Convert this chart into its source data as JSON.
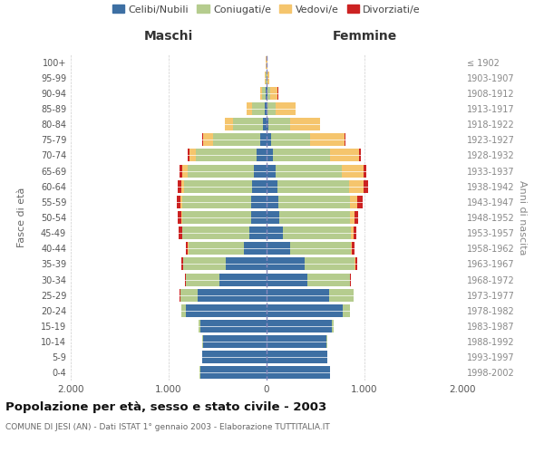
{
  "age_groups": [
    "0-4",
    "5-9",
    "10-14",
    "15-19",
    "20-24",
    "25-29",
    "30-34",
    "35-39",
    "40-44",
    "45-49",
    "50-54",
    "55-59",
    "60-64",
    "65-69",
    "70-74",
    "75-79",
    "80-84",
    "85-89",
    "90-94",
    "95-99",
    "100+"
  ],
  "birth_years": [
    "1998-2002",
    "1993-1997",
    "1988-1992",
    "1983-1987",
    "1978-1982",
    "1973-1977",
    "1968-1972",
    "1963-1967",
    "1958-1962",
    "1953-1957",
    "1948-1952",
    "1943-1947",
    "1938-1942",
    "1933-1937",
    "1928-1932",
    "1923-1927",
    "1918-1922",
    "1913-1917",
    "1908-1912",
    "1903-1907",
    "≤ 1902"
  ],
  "male": {
    "celibi": [
      680,
      660,
      650,
      680,
      820,
      700,
      480,
      420,
      230,
      180,
      160,
      155,
      145,
      130,
      100,
      65,
      35,
      20,
      8,
      4,
      2
    ],
    "coniugati": [
      2,
      2,
      4,
      15,
      50,
      180,
      340,
      430,
      570,
      680,
      700,
      710,
      700,
      680,
      620,
      480,
      310,
      130,
      40,
      8,
      2
    ],
    "vedovi": [
      0,
      0,
      0,
      0,
      1,
      1,
      2,
      2,
      3,
      5,
      8,
      15,
      30,
      50,
      70,
      100,
      80,
      50,
      20,
      5,
      1
    ],
    "divorziati": [
      0,
      0,
      0,
      1,
      2,
      4,
      8,
      15,
      20,
      30,
      35,
      40,
      35,
      25,
      12,
      8,
      5,
      2,
      1,
      0,
      0
    ]
  },
  "female": {
    "nubili": [
      650,
      620,
      610,
      665,
      775,
      640,
      420,
      390,
      240,
      165,
      130,
      120,
      110,
      90,
      65,
      45,
      22,
      12,
      5,
      3,
      1
    ],
    "coniugate": [
      2,
      3,
      8,
      20,
      75,
      245,
      430,
      510,
      620,
      700,
      720,
      730,
      730,
      680,
      580,
      400,
      220,
      80,
      30,
      5,
      2
    ],
    "vedove": [
      0,
      0,
      0,
      0,
      1,
      2,
      3,
      5,
      10,
      20,
      45,
      80,
      150,
      220,
      300,
      350,
      300,
      200,
      80,
      20,
      3
    ],
    "divorziate": [
      0,
      0,
      0,
      1,
      2,
      5,
      12,
      20,
      25,
      35,
      40,
      50,
      45,
      30,
      15,
      10,
      5,
      2,
      1,
      0,
      0
    ]
  },
  "colors": {
    "celibi": "#3d6fa3",
    "coniugati": "#b5cc8e",
    "vedovi": "#f5c56d",
    "divorziati": "#cc2222"
  },
  "xlim": 2000,
  "title": "Popolazione per età, sesso e stato civile - 2003",
  "subtitle": "COMUNE DI JESI (AN) - Dati ISTAT 1° gennaio 2003 - Elaborazione TUTTITALIA.IT",
  "ylabel_left": "Fasce di età",
  "ylabel_right": "Anni di nascita",
  "xlabel_left": "Maschi",
  "xlabel_right": "Femmine",
  "bg_color": "#ffffff",
  "grid_color": "#cccccc"
}
